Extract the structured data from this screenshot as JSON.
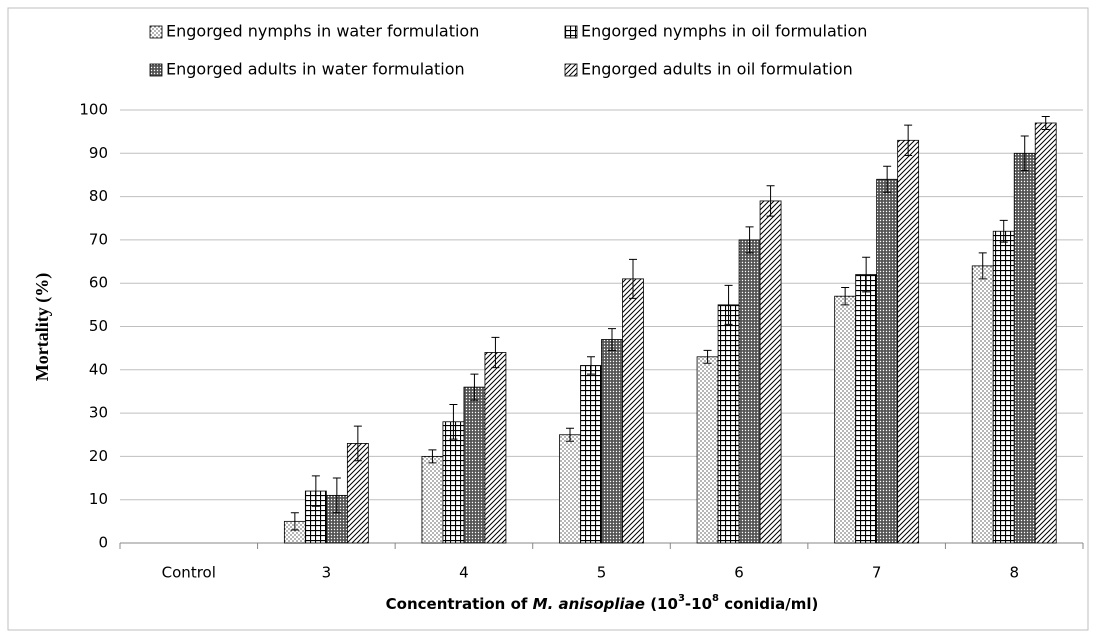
{
  "chart_data": {
    "type": "bar",
    "x_label": [
      "Concentration of ",
      "M. anisopliae",
      " (10",
      "3",
      "-10",
      "8",
      " conidia/ml)"
    ],
    "y_label": "Mortality (%)",
    "categories": [
      "Control",
      "3",
      "4",
      "5",
      "6",
      "7",
      "8"
    ],
    "series": [
      {
        "name": "Engorged nymphs in water formulation",
        "color": "#000000",
        "pattern": "dots",
        "values": [
          0,
          5,
          20,
          25,
          43,
          57,
          64
        ],
        "errors": [
          0,
          2,
          1.5,
          1.5,
          1.5,
          2,
          3
        ]
      },
      {
        "name": "Engorged nymphs in oil formulation",
        "color": "#000000",
        "pattern": "grid",
        "values": [
          0,
          12,
          28,
          41,
          55,
          62,
          72
        ],
        "errors": [
          0,
          3.5,
          4,
          2,
          4.5,
          4,
          2.5
        ]
      },
      {
        "name": "Engorged adults in water formulation",
        "color": "#000000",
        "pattern": "dense",
        "values": [
          0,
          11,
          36,
          47,
          70,
          84,
          90
        ],
        "errors": [
          0,
          4,
          3,
          2.5,
          3,
          3,
          4
        ]
      },
      {
        "name": "Engorged adults in oil formulation",
        "color": "#000000",
        "pattern": "diagonal",
        "values": [
          0,
          23,
          44,
          61,
          79,
          93,
          97
        ],
        "errors": [
          0,
          4,
          3.5,
          4.5,
          3.5,
          3.5,
          1.5
        ]
      }
    ],
    "ylim": [
      0,
      100
    ],
    "yticks": [
      0,
      10,
      20,
      30,
      40,
      50,
      60,
      70,
      80,
      90,
      100
    ],
    "grid": true
  }
}
